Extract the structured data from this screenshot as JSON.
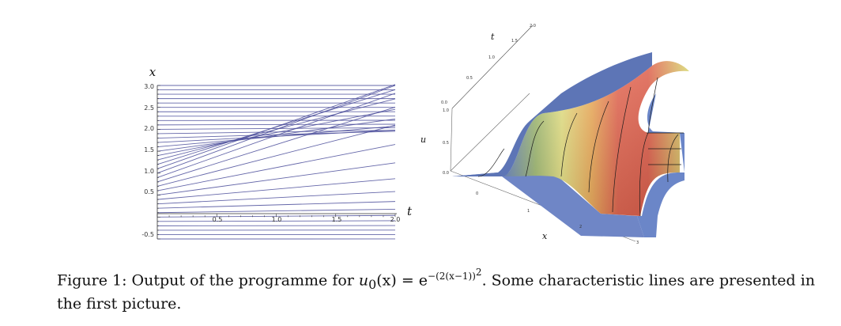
{
  "figure": {
    "left": {
      "xlabel": "t",
      "ylabel": "x",
      "y_tick_labels": [
        "3.0",
        "2.5",
        "2.0",
        "1.5",
        "1.0",
        "0.5",
        "-0.5"
      ],
      "x_tick_labels": [
        "0.5",
        "1.0",
        "1.5",
        "2.0"
      ]
    },
    "right": {
      "t_label": "t",
      "u_label": "u",
      "x_label": "x",
      "t_tick_labels": [
        "0.0",
        "0.5",
        "1.0",
        "1.5",
        "2.0"
      ],
      "u_tick_labels": [
        "1.0",
        "0.5",
        "0.0"
      ],
      "x_tick_labels": [
        "0",
        "1",
        "2",
        "3"
      ]
    }
  },
  "chart_data": [
    {
      "type": "line",
      "xlabel": "t",
      "ylabel": "x",
      "xlim": [
        0,
        2.0
      ],
      "ylim": [
        -0.5,
        3.0
      ],
      "initial_x": [
        -0.5,
        -0.4,
        -0.3,
        -0.2,
        -0.1,
        0.0,
        0.1,
        0.2,
        0.3,
        0.4,
        0.5,
        0.6,
        0.7,
        0.8,
        0.9,
        1.0,
        1.1,
        1.2,
        1.3,
        1.4,
        1.5,
        1.6,
        1.7,
        1.8,
        1.9,
        2.0,
        2.1,
        2.2,
        2.3,
        2.4,
        2.5,
        2.6,
        2.7,
        2.8,
        2.9,
        3.0
      ],
      "u0": "exp(-(2(x-1))^2)",
      "line_color": "#4a4c9a"
    },
    {
      "type": "surface",
      "xlabel": "x",
      "ylabel": "t",
      "zlabel": "u",
      "xlim": [
        -0.5,
        3
      ],
      "tlim": [
        0,
        2.0
      ],
      "ulim": [
        0,
        1.0
      ]
    }
  ],
  "caption": {
    "prefix": "Figure 1: Output of the programme for ",
    "formula_lhs": "u",
    "formula_sub": "0",
    "formula_arg": "(x)",
    "formula_eq": " = e",
    "formula_exp": "−(2(x−1))",
    "formula_exp_pow": "2",
    "suffix": ". Some characteristic lines are presented in the first picture."
  }
}
